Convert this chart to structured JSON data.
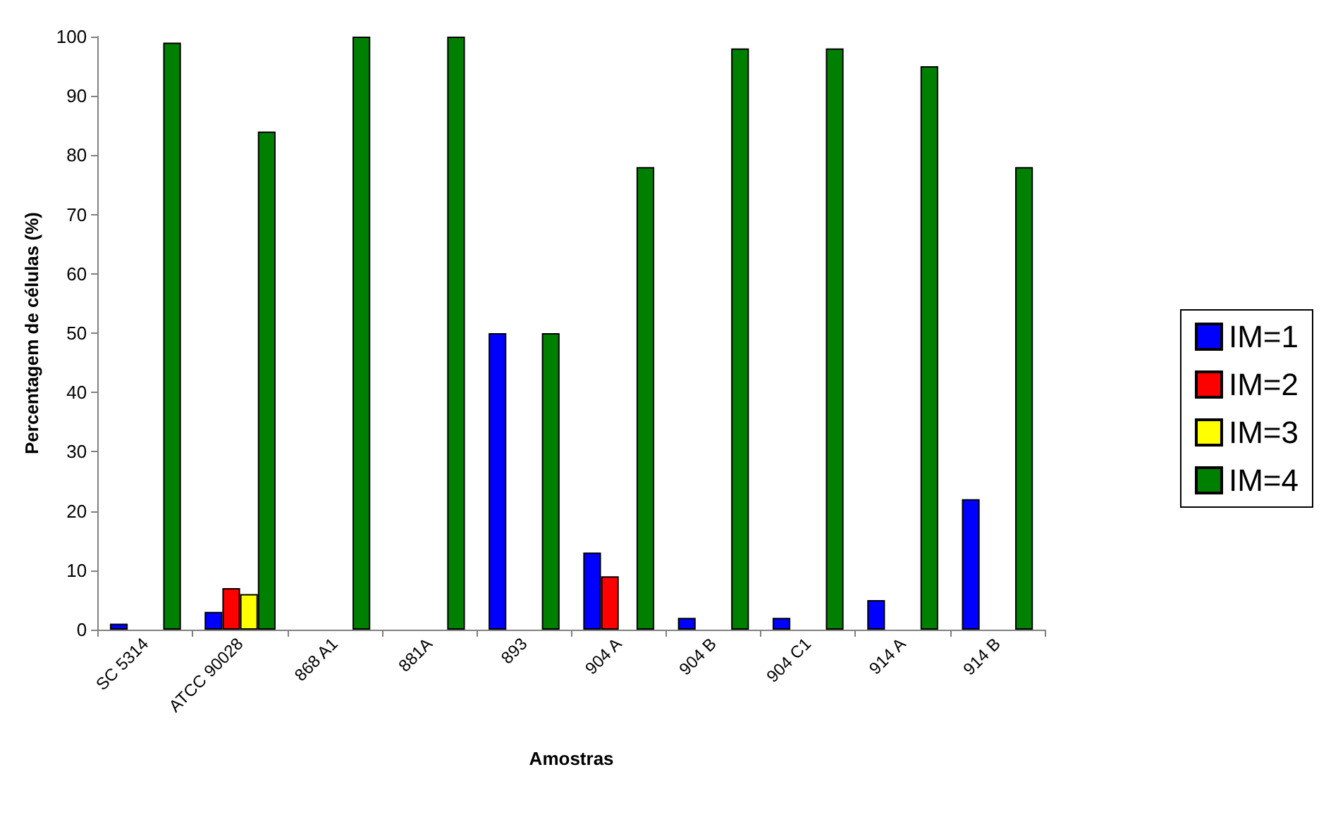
{
  "chart_data": {
    "type": "bar",
    "xlabel": "Amostras",
    "ylabel": "Percentagem de células (%)",
    "categories": [
      "SC 5314",
      "ATCC 90028",
      "868 A1",
      "881A",
      "893",
      "904 A",
      "904 B",
      "904 C1",
      "914 A",
      "914 B"
    ],
    "series": [
      {
        "name": "IM=1",
        "color": "#0000ff",
        "values": [
          1,
          3,
          0,
          0,
          50,
          13,
          2,
          2,
          5,
          22
        ]
      },
      {
        "name": "IM=2",
        "color": "#ff0000",
        "values": [
          0,
          7,
          0,
          0,
          0,
          9,
          0,
          0,
          0,
          0
        ]
      },
      {
        "name": "IM=3",
        "color": "#ffff00",
        "values": [
          0,
          6,
          0,
          0,
          0,
          0,
          0,
          0,
          0,
          0
        ]
      },
      {
        "name": "IM=4",
        "color": "#008000",
        "values": [
          99,
          84,
          100,
          100,
          50,
          78,
          98,
          98,
          95,
          78
        ]
      }
    ],
    "ylim": [
      0,
      100
    ],
    "yticks": [
      0,
      10,
      20,
      30,
      40,
      50,
      60,
      70,
      80,
      90,
      100
    ],
    "grid": false,
    "legend": "right"
  }
}
